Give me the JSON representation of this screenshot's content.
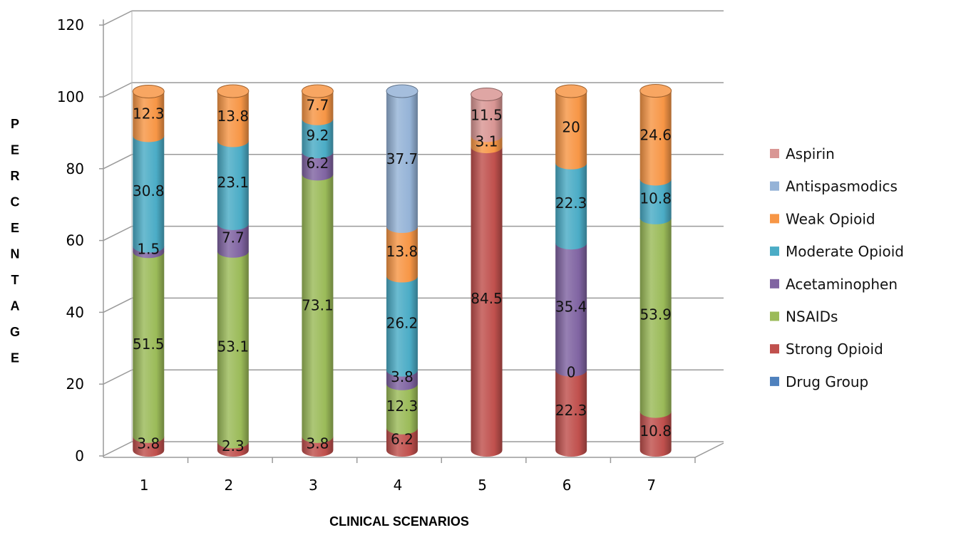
{
  "chart_data": {
    "type": "bar",
    "stacked": true,
    "style": "3d-cylinder",
    "categories": [
      "1",
      "2",
      "3",
      "4",
      "5",
      "6",
      "7"
    ],
    "xlabel": "CLINICAL SCENARIOS",
    "ylabel": "PERCENTAGE",
    "ylim": [
      0,
      120
    ],
    "yticks": [
      "0",
      "20",
      "40",
      "60",
      "80",
      "100",
      "120"
    ],
    "grid": true,
    "legend_position": "right",
    "series": [
      {
        "name": "Drug Group",
        "color": "#4f81bd",
        "values": [
          null,
          null,
          null,
          null,
          null,
          null,
          null
        ],
        "labels": [
          "",
          "",
          "",
          "",
          "",
          "",
          ""
        ]
      },
      {
        "name": "Strong Opioid",
        "color": "#c0504d",
        "values": [
          3.8,
          2.3,
          3.8,
          6.2,
          84.5,
          22.3,
          10.8
        ],
        "labels": [
          "3.8",
          "2.3",
          "3.8",
          "6.2",
          "84.5",
          "22.3",
          "10.8"
        ]
      },
      {
        "name": "NSAIDs",
        "color": "#9bbb59",
        "values": [
          51.5,
          53.1,
          73.1,
          12.3,
          null,
          null,
          53.9
        ],
        "labels": [
          "51.5",
          "53.1",
          "73.1",
          "12.3",
          "",
          "",
          "53.9"
        ]
      },
      {
        "name": "Acetaminophen",
        "color": "#8064a2",
        "values": [
          1.5,
          7.7,
          6.2,
          3.8,
          null,
          35.4,
          null
        ],
        "labels": [
          "1.5",
          "7.7",
          "6.2",
          "3.8",
          "",
          "35.4",
          ""
        ]
      },
      {
        "name": "Moderate Opioid",
        "color": "#4bacc6",
        "values": [
          30.8,
          23.1,
          9.2,
          26.2,
          null,
          22.3,
          10.8
        ],
        "labels": [
          "30.8",
          "23.1",
          "9.2",
          "26.2",
          "",
          "22.3",
          "10.8"
        ]
      },
      {
        "name": "Weak Opioid",
        "color": "#f79646",
        "values": [
          12.3,
          13.8,
          7.7,
          13.8,
          3.1,
          20,
          24.6
        ],
        "labels": [
          "12.3",
          "13.8",
          "7.7",
          "13.8",
          "3.1",
          "20",
          "24.6"
        ]
      },
      {
        "name": "Antispasmodics",
        "color": "#95b3d7",
        "values": [
          null,
          null,
          null,
          37.7,
          null,
          null,
          null
        ],
        "labels": [
          "",
          "",
          "",
          "37.7",
          "",
          "",
          ""
        ]
      },
      {
        "name": "Aspirin",
        "color": "#d99694",
        "values": [
          null,
          null,
          null,
          null,
          11.5,
          null,
          null
        ],
        "labels": [
          "",
          "",
          "",
          "",
          "11.5",
          "",
          ""
        ]
      }
    ],
    "extra_labels": [
      {
        "category": "6",
        "text": "0",
        "at": 22.3
      }
    ],
    "legend_order": [
      "Aspirin",
      "Antispasmodics",
      "Weak Opioid",
      "Moderate Opioid",
      "Acetaminophen",
      "NSAIDs",
      "Strong Opioid",
      "Drug Group"
    ]
  }
}
